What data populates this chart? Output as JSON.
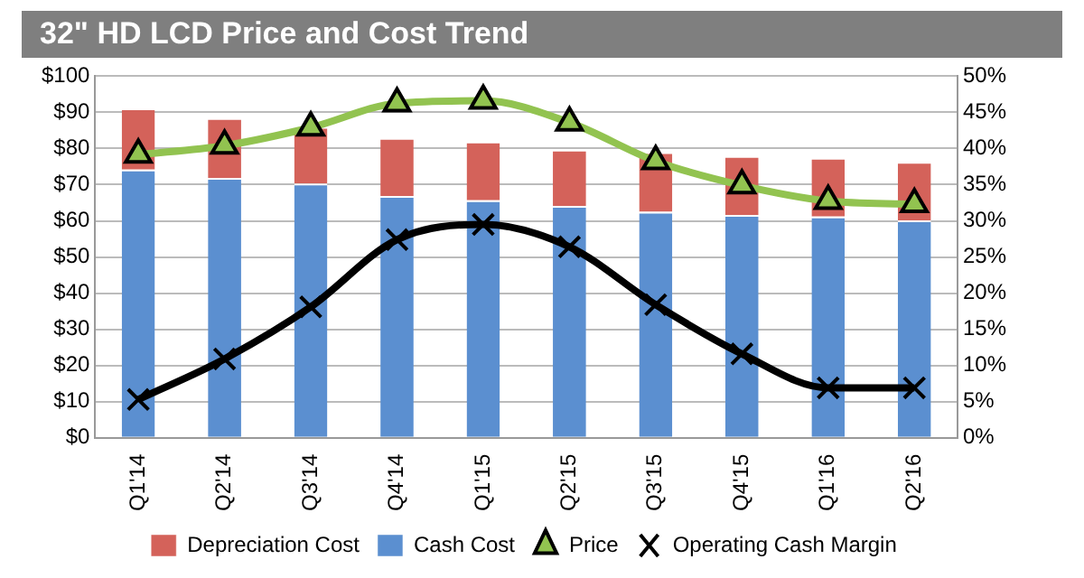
{
  "chart_data": {
    "type": "bar",
    "title": "32\" HD LCD Price and Cost Trend",
    "categories": [
      "Q1'14",
      "Q2'14",
      "Q3'14",
      "Q4'14",
      "Q1'15",
      "Q2'15",
      "Q3'15",
      "Q4'15",
      "Q1'16",
      "Q2'16"
    ],
    "stacked": true,
    "series": [
      {
        "name": "Cash Cost",
        "color": "#5b8fd0",
        "values": [
          74.2,
          71.9,
          70.3,
          66.9,
          65.7,
          64.1,
          62.5,
          61.6,
          61.2,
          60.1
        ]
      },
      {
        "name": "Depreciation Cost",
        "color": "#d4625a",
        "values": [
          16.9,
          16.5,
          15.7,
          16.0,
          16.2,
          15.6,
          16.5,
          16.3,
          16.2,
          16.2
        ]
      },
      {
        "name": "Price",
        "type": "line",
        "color": "#92c350",
        "marker": "triangle",
        "values": [
          78.3,
          80.8,
          85.8,
          92.5,
          93.2,
          87.2,
          76.5,
          69.8,
          65.5,
          64.6
        ]
      },
      {
        "name": "Operating Cash Margin",
        "type": "line",
        "axis": "y2",
        "color": "#000000",
        "marker": "cross",
        "values": [
          5.3,
          10.9,
          18.1,
          27.4,
          29.5,
          26.4,
          18.4,
          11.6,
          6.9,
          6.9
        ]
      }
    ],
    "ylim": [
      0,
      100
    ],
    "yticks": [
      {
        "value": 0,
        "label": "$0"
      },
      {
        "value": 10,
        "label": "$10"
      },
      {
        "value": 20,
        "label": "$20"
      },
      {
        "value": 30,
        "label": "$30"
      },
      {
        "value": 40,
        "label": "$40"
      },
      {
        "value": 50,
        "label": "$50"
      },
      {
        "value": 60,
        "label": "$60"
      },
      {
        "value": 70,
        "label": "$70"
      },
      {
        "value": 80,
        "label": "$80"
      },
      {
        "value": 90,
        "label": "$90"
      },
      {
        "value": 100,
        "label": "$100"
      }
    ],
    "y2lim": [
      0,
      50
    ],
    "y2ticks": [
      {
        "value": 0,
        "label": "0%"
      },
      {
        "value": 5,
        "label": "5%"
      },
      {
        "value": 10,
        "label": "10%"
      },
      {
        "value": 15,
        "label": "15%"
      },
      {
        "value": 20,
        "label": "20%"
      },
      {
        "value": 25,
        "label": "25%"
      },
      {
        "value": 30,
        "label": "30%"
      },
      {
        "value": 35,
        "label": "35%"
      },
      {
        "value": 40,
        "label": "40%"
      },
      {
        "value": 45,
        "label": "45%"
      },
      {
        "value": 50,
        "label": "50%"
      }
    ],
    "grid": "y",
    "legend": "bottom"
  }
}
